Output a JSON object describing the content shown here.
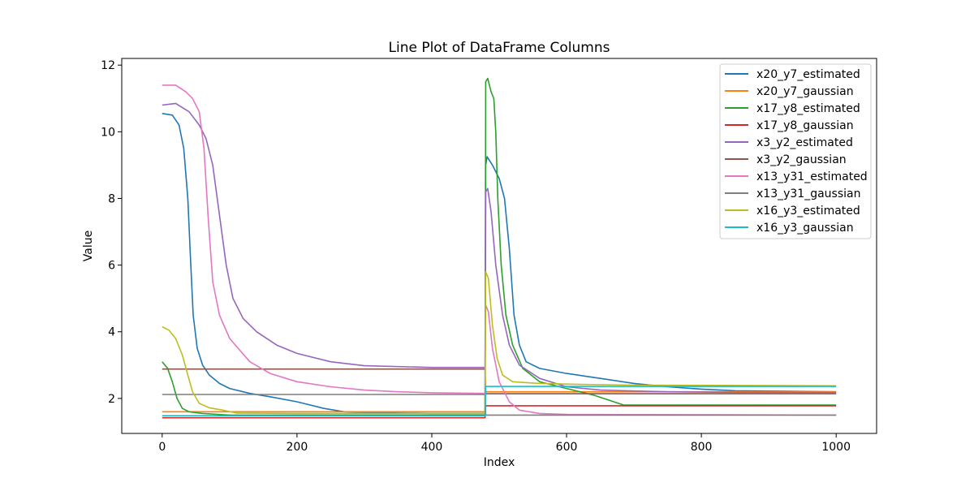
{
  "chart_data": {
    "type": "line",
    "title": "Line Plot of DataFrame Columns",
    "xlabel": "Index",
    "ylabel": "Value",
    "xlim": [
      -60,
      1060
    ],
    "ylim": [
      0.95,
      12.2
    ],
    "xticks": [
      0,
      200,
      400,
      600,
      800,
      1000
    ],
    "yticks": [
      2,
      4,
      6,
      8,
      10,
      12
    ],
    "grid": false,
    "legend_position": "top-right",
    "series": [
      {
        "name": "x20_y7_estimated",
        "color": "#1f77b4",
        "points": [
          [
            0,
            10.55
          ],
          [
            15,
            10.5
          ],
          [
            25,
            10.2
          ],
          [
            32,
            9.5
          ],
          [
            38,
            8.0
          ],
          [
            42,
            6.2
          ],
          [
            46,
            4.5
          ],
          [
            52,
            3.5
          ],
          [
            60,
            3.0
          ],
          [
            70,
            2.7
          ],
          [
            85,
            2.45
          ],
          [
            100,
            2.3
          ],
          [
            130,
            2.15
          ],
          [
            160,
            2.05
          ],
          [
            200,
            1.9
          ],
          [
            240,
            1.7
          ],
          [
            270,
            1.6
          ],
          [
            300,
            1.58
          ],
          [
            350,
            1.56
          ],
          [
            400,
            1.55
          ],
          [
            479,
            1.55
          ],
          [
            480,
            9.0
          ],
          [
            482,
            9.25
          ],
          [
            490,
            9.0
          ],
          [
            500,
            8.6
          ],
          [
            508,
            8.0
          ],
          [
            515,
            6.5
          ],
          [
            522,
            4.5
          ],
          [
            530,
            3.6
          ],
          [
            540,
            3.1
          ],
          [
            560,
            2.9
          ],
          [
            600,
            2.75
          ],
          [
            650,
            2.6
          ],
          [
            700,
            2.45
          ],
          [
            750,
            2.35
          ],
          [
            800,
            2.28
          ],
          [
            850,
            2.23
          ],
          [
            900,
            2.22
          ],
          [
            1000,
            2.2
          ]
        ]
      },
      {
        "name": "x20_y7_gaussian",
        "color": "#ff7f0e",
        "points": [
          [
            0,
            1.6
          ],
          [
            479,
            1.6
          ],
          [
            480,
            2.2
          ],
          [
            1000,
            2.2
          ]
        ]
      },
      {
        "name": "x17_y8_estimated",
        "color": "#2ca02c",
        "points": [
          [
            0,
            3.1
          ],
          [
            8,
            2.9
          ],
          [
            15,
            2.5
          ],
          [
            22,
            2.0
          ],
          [
            30,
            1.7
          ],
          [
            40,
            1.6
          ],
          [
            60,
            1.55
          ],
          [
            100,
            1.5
          ],
          [
            479,
            1.5
          ],
          [
            480,
            11.5
          ],
          [
            483,
            11.6
          ],
          [
            488,
            11.2
          ],
          [
            492,
            11.0
          ],
          [
            495,
            10.0
          ],
          [
            498,
            8.0
          ],
          [
            503,
            6.0
          ],
          [
            510,
            4.5
          ],
          [
            520,
            3.6
          ],
          [
            535,
            2.9
          ],
          [
            560,
            2.5
          ],
          [
            600,
            2.3
          ],
          [
            640,
            2.1
          ],
          [
            670,
            1.9
          ],
          [
            685,
            1.8
          ],
          [
            750,
            1.8
          ],
          [
            850,
            1.8
          ],
          [
            1000,
            1.8
          ]
        ]
      },
      {
        "name": "x17_y8_gaussian",
        "color": "#d62728",
        "points": [
          [
            0,
            1.42
          ],
          [
            479,
            1.42
          ],
          [
            480,
            1.78
          ],
          [
            1000,
            1.78
          ]
        ]
      },
      {
        "name": "x3_y2_estimated",
        "color": "#9467bd",
        "points": [
          [
            0,
            10.8
          ],
          [
            20,
            10.85
          ],
          [
            40,
            10.6
          ],
          [
            55,
            10.2
          ],
          [
            65,
            9.8
          ],
          [
            75,
            9.0
          ],
          [
            85,
            7.5
          ],
          [
            95,
            6.0
          ],
          [
            105,
            5.0
          ],
          [
            120,
            4.4
          ],
          [
            140,
            4.0
          ],
          [
            170,
            3.6
          ],
          [
            200,
            3.35
          ],
          [
            250,
            3.1
          ],
          [
            300,
            2.98
          ],
          [
            400,
            2.93
          ],
          [
            479,
            2.93
          ],
          [
            480,
            8.2
          ],
          [
            483,
            8.3
          ],
          [
            488,
            7.6
          ],
          [
            495,
            6.0
          ],
          [
            505,
            4.5
          ],
          [
            515,
            3.6
          ],
          [
            530,
            3.0
          ],
          [
            560,
            2.6
          ],
          [
            600,
            2.35
          ],
          [
            650,
            2.25
          ],
          [
            750,
            2.2
          ],
          [
            850,
            2.18
          ],
          [
            1000,
            2.18
          ]
        ]
      },
      {
        "name": "x3_y2_gaussian",
        "color": "#8c564b",
        "points": [
          [
            0,
            2.88
          ],
          [
            479,
            2.88
          ],
          [
            480,
            2.14
          ],
          [
            1000,
            2.14
          ]
        ]
      },
      {
        "name": "x13_y31_estimated",
        "color": "#e377c2",
        "points": [
          [
            0,
            11.4
          ],
          [
            20,
            11.4
          ],
          [
            35,
            11.2
          ],
          [
            45,
            11.0
          ],
          [
            55,
            10.6
          ],
          [
            62,
            9.5
          ],
          [
            68,
            7.5
          ],
          [
            75,
            5.5
          ],
          [
            85,
            4.5
          ],
          [
            100,
            3.8
          ],
          [
            130,
            3.1
          ],
          [
            160,
            2.75
          ],
          [
            200,
            2.5
          ],
          [
            250,
            2.35
          ],
          [
            300,
            2.25
          ],
          [
            350,
            2.2
          ],
          [
            400,
            2.17
          ],
          [
            479,
            2.15
          ],
          [
            480,
            4.8
          ],
          [
            484,
            4.6
          ],
          [
            490,
            3.5
          ],
          [
            500,
            2.5
          ],
          [
            515,
            1.9
          ],
          [
            530,
            1.65
          ],
          [
            560,
            1.55
          ],
          [
            600,
            1.52
          ],
          [
            1000,
            1.5
          ]
        ]
      },
      {
        "name": "x13_y31_gaussian",
        "color": "#7f7f7f",
        "points": [
          [
            0,
            2.12
          ],
          [
            479,
            2.12
          ],
          [
            480,
            1.5
          ],
          [
            1000,
            1.5
          ]
        ]
      },
      {
        "name": "x16_y3_estimated",
        "color": "#bcbd22",
        "points": [
          [
            0,
            4.15
          ],
          [
            10,
            4.05
          ],
          [
            20,
            3.8
          ],
          [
            30,
            3.3
          ],
          [
            38,
            2.7
          ],
          [
            45,
            2.2
          ],
          [
            55,
            1.85
          ],
          [
            70,
            1.72
          ],
          [
            90,
            1.65
          ],
          [
            110,
            1.56
          ],
          [
            200,
            1.55
          ],
          [
            479,
            1.55
          ],
          [
            480,
            5.8
          ],
          [
            484,
            5.6
          ],
          [
            490,
            4.2
          ],
          [
            497,
            3.2
          ],
          [
            505,
            2.7
          ],
          [
            520,
            2.5
          ],
          [
            560,
            2.45
          ],
          [
            620,
            2.42
          ],
          [
            700,
            2.4
          ],
          [
            1000,
            2.38
          ]
        ]
      },
      {
        "name": "x16_y3_gaussian",
        "color": "#17becf",
        "points": [
          [
            0,
            1.48
          ],
          [
            479,
            1.48
          ],
          [
            480,
            2.36
          ],
          [
            1000,
            2.36
          ]
        ]
      }
    ]
  }
}
